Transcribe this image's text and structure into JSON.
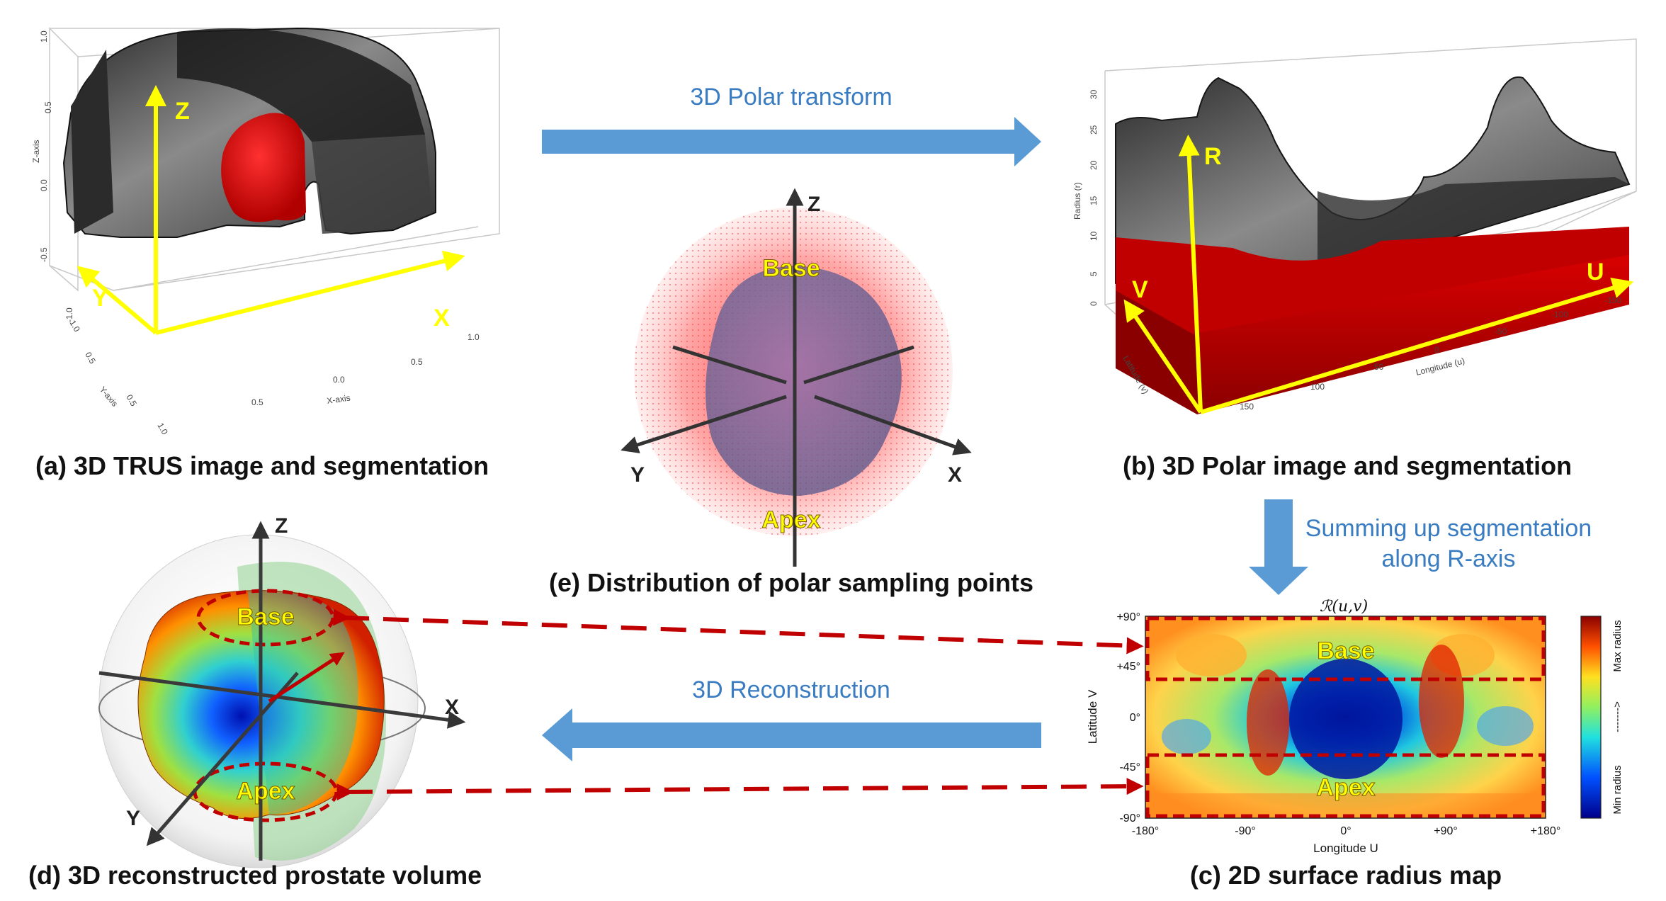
{
  "panels": {
    "a": {
      "caption": "(a) 3D TRUS image and segmentation",
      "axes": {
        "z": "Z",
        "y": "Y",
        "x": "X"
      },
      "axis_names": {
        "z": "Z-axis",
        "y": "Y-axis",
        "x": "X-axis"
      },
      "z_ticks": [
        "1.0",
        "0.5",
        "0.0",
        "-0.5",
        "-1.0"
      ],
      "x_ticks": [
        "0.5",
        "0.0",
        "0.5",
        "1.0"
      ],
      "y_ticks": [
        "1.0",
        "0.5",
        "0.5",
        "1.0"
      ]
    },
    "b": {
      "caption": "(b) 3D Polar image and segmentation",
      "axes": {
        "r": "R",
        "u": "U",
        "v": "V"
      },
      "axis_names": {
        "r": "Radius (r)",
        "u": "Longitude (u)",
        "v": "Latitude (v)"
      },
      "r_ticks": [
        "30",
        "25",
        "20",
        "15",
        "10",
        "5",
        "0"
      ],
      "u_ticks": [
        "150",
        "100",
        "50",
        "0",
        "-50",
        "-100",
        "-150"
      ]
    },
    "c": {
      "caption": "(c) 2D surface radius map",
      "title": "ℛ(u,v)",
      "xlabel": "Longitude U",
      "ylabel": "Latitude V",
      "x_ticks": [
        "-180°",
        "-90°",
        "0°",
        "+90°",
        "+180°"
      ],
      "y_ticks": [
        "+90°",
        "+45°",
        "0°",
        "-45°",
        "-90°"
      ],
      "colorbar_labels": {
        "max": "Max radius",
        "mid": "------->",
        "min": "Min radius"
      },
      "region_labels": {
        "base": "Base",
        "apex": "Apex"
      }
    },
    "d": {
      "caption": "(d) 3D reconstructed prostate volume",
      "axes": {
        "z": "Z",
        "x": "X",
        "y": "Y"
      },
      "region_labels": {
        "base": "Base",
        "apex": "Apex"
      }
    },
    "e": {
      "caption": "(e) Distribution of polar sampling points",
      "axes": {
        "z": "Z",
        "x": "X",
        "y": "Y"
      },
      "region_labels": {
        "base": "Base",
        "apex": "Apex"
      }
    }
  },
  "flows": {
    "polar_transform": "3D Polar transform",
    "summing_line1": "Summing up segmentation",
    "summing_line2": "along R-axis",
    "reconstruction": "3D Reconstruction"
  },
  "colors": {
    "flow_arrow": "#5b9bd5",
    "flow_text": "#3a7cc2",
    "axis_yellow": "#ffff00",
    "segmentation_red": "#e00000",
    "dashed_red": "#c00000"
  }
}
